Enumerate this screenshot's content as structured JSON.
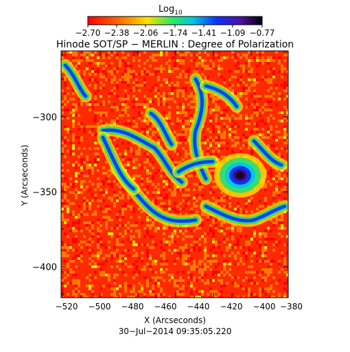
{
  "colorbar": {
    "label": "Log",
    "label_sub": "10",
    "tick_labels": [
      "−2.70",
      "−2.38",
      "−2.06",
      "−1.74",
      "−1.41",
      "−1.09",
      "−0.77"
    ]
  },
  "title": "Hinode SOT/SP − MERLIN : Degree of Polarization",
  "axes": {
    "xlabel": "X (Arcseconds)",
    "ylabel": "Y (Arcseconds)",
    "x_ticks": [
      "−520",
      "−500",
      "−480",
      "−460",
      "−440",
      "−420",
      "−400",
      "−380"
    ],
    "y_ticks": [
      "−300",
      "−350",
      "−400"
    ]
  },
  "timestamp": "30−Jul−2014 09:35:05.220",
  "palette": {
    "low": "#ff2a00",
    "orange": "#ff7a00",
    "yellow": "#ffe600",
    "green": "#22e07a",
    "cyan": "#00c8e8",
    "blue": "#1030ff",
    "high": "#1a0028"
  }
}
